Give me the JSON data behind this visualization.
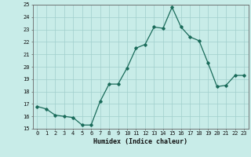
{
  "x": [
    0,
    1,
    2,
    3,
    4,
    5,
    6,
    7,
    8,
    9,
    10,
    11,
    12,
    13,
    14,
    15,
    16,
    17,
    18,
    19,
    20,
    21,
    22,
    23
  ],
  "y": [
    16.8,
    16.6,
    16.1,
    16.0,
    15.9,
    15.3,
    15.3,
    17.2,
    18.6,
    18.6,
    19.9,
    21.5,
    21.8,
    23.2,
    23.1,
    24.8,
    23.2,
    22.4,
    22.1,
    20.3,
    18.4,
    18.5,
    19.3,
    19.3
  ],
  "line_color": "#1a6b5a",
  "marker": "D",
  "marker_size": 1.8,
  "bg_color": "#c8ece8",
  "grid_color": "#a0cfcc",
  "xlabel": "Humidex (Indice chaleur)",
  "ylim": [
    15,
    25
  ],
  "xlim": [
    -0.5,
    23.5
  ],
  "yticks": [
    15,
    16,
    17,
    18,
    19,
    20,
    21,
    22,
    23,
    24,
    25
  ],
  "xticks": [
    0,
    1,
    2,
    3,
    4,
    5,
    6,
    7,
    8,
    9,
    10,
    11,
    12,
    13,
    14,
    15,
    16,
    17,
    18,
    19,
    20,
    21,
    22,
    23
  ],
  "tick_fontsize": 5.0,
  "xlabel_fontsize": 6.0,
  "linewidth": 0.9
}
